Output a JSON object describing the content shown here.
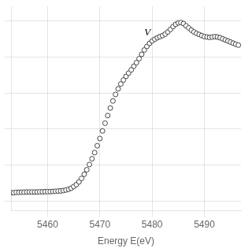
{
  "chart_data": {
    "type": "scatter",
    "xlabel": "Energy E(eV)",
    "x": [
      5453.0,
      5453.5,
      5454.0,
      5454.5,
      5455.0,
      5455.5,
      5456.0,
      5456.5,
      5457.0,
      5457.5,
      5458.0,
      5458.5,
      5459.0,
      5459.5,
      5460.0,
      5460.5,
      5461.0,
      5461.5,
      5462.0,
      5462.5,
      5463.0,
      5463.5,
      5464.0,
      5464.5,
      5465.0,
      5465.5,
      5466.0,
      5466.5,
      5467.0,
      5467.5,
      5468.0,
      5468.5,
      5469.0,
      5469.5,
      5470.0,
      5470.5,
      5471.0,
      5471.5,
      5472.0,
      5472.5,
      5473.0,
      5473.5,
      5474.0,
      5474.5,
      5475.0,
      5475.5,
      5476.0,
      5476.5,
      5477.0,
      5477.5,
      5478.0,
      5478.5,
      5479.0,
      5479.5,
      5480.0,
      5480.5,
      5481.0,
      5481.5,
      5482.0,
      5482.5,
      5483.0,
      5483.5,
      5484.0,
      5484.5,
      5485.0,
      5485.5,
      5486.0,
      5486.5,
      5487.0,
      5487.5,
      5488.0,
      5488.5,
      5489.0,
      5489.5,
      5490.0,
      5490.5,
      5491.0,
      5491.5,
      5492.0,
      5492.5,
      5493.0,
      5493.5,
      5494.0,
      5494.5,
      5495.0,
      5495.5,
      5496.0,
      5496.5
    ],
    "values": [
      0.048,
      0.048,
      0.05,
      0.05,
      0.051,
      0.051,
      0.052,
      0.052,
      0.052,
      0.052,
      0.052,
      0.053,
      0.053,
      0.054,
      0.054,
      0.054,
      0.055,
      0.056,
      0.057,
      0.058,
      0.06,
      0.063,
      0.067,
      0.073,
      0.082,
      0.093,
      0.108,
      0.127,
      0.15,
      0.175,
      0.204,
      0.236,
      0.27,
      0.308,
      0.348,
      0.39,
      0.433,
      0.475,
      0.517,
      0.556,
      0.592,
      0.623,
      0.65,
      0.672,
      0.692,
      0.71,
      0.728,
      0.748,
      0.768,
      0.79,
      0.814,
      0.838,
      0.858,
      0.875,
      0.888,
      0.898,
      0.906,
      0.912,
      0.918,
      0.926,
      0.938,
      0.952,
      0.968,
      0.98,
      0.988,
      0.99,
      0.984,
      0.972,
      0.96,
      0.948,
      0.938,
      0.93,
      0.924,
      0.918,
      0.912,
      0.91,
      0.908,
      0.91,
      0.912,
      0.91,
      0.906,
      0.9,
      0.894,
      0.888,
      0.882,
      0.876,
      0.87,
      0.865
    ],
    "color": "#444444",
    "marker": "circle",
    "xlim": [
      5453,
      5497
    ],
    "ylim": [
      -0.05,
      1.08
    ],
    "xticks": [
      5460,
      5470,
      5480,
      5490
    ],
    "yticks": [
      0,
      0.2,
      0.4,
      0.6,
      0.8,
      1.0
    ],
    "grid": true,
    "tick_labels": "x",
    "annotations": [
      {
        "text": "V",
        "x": 5478.5,
        "y": 0.905
      }
    ]
  }
}
